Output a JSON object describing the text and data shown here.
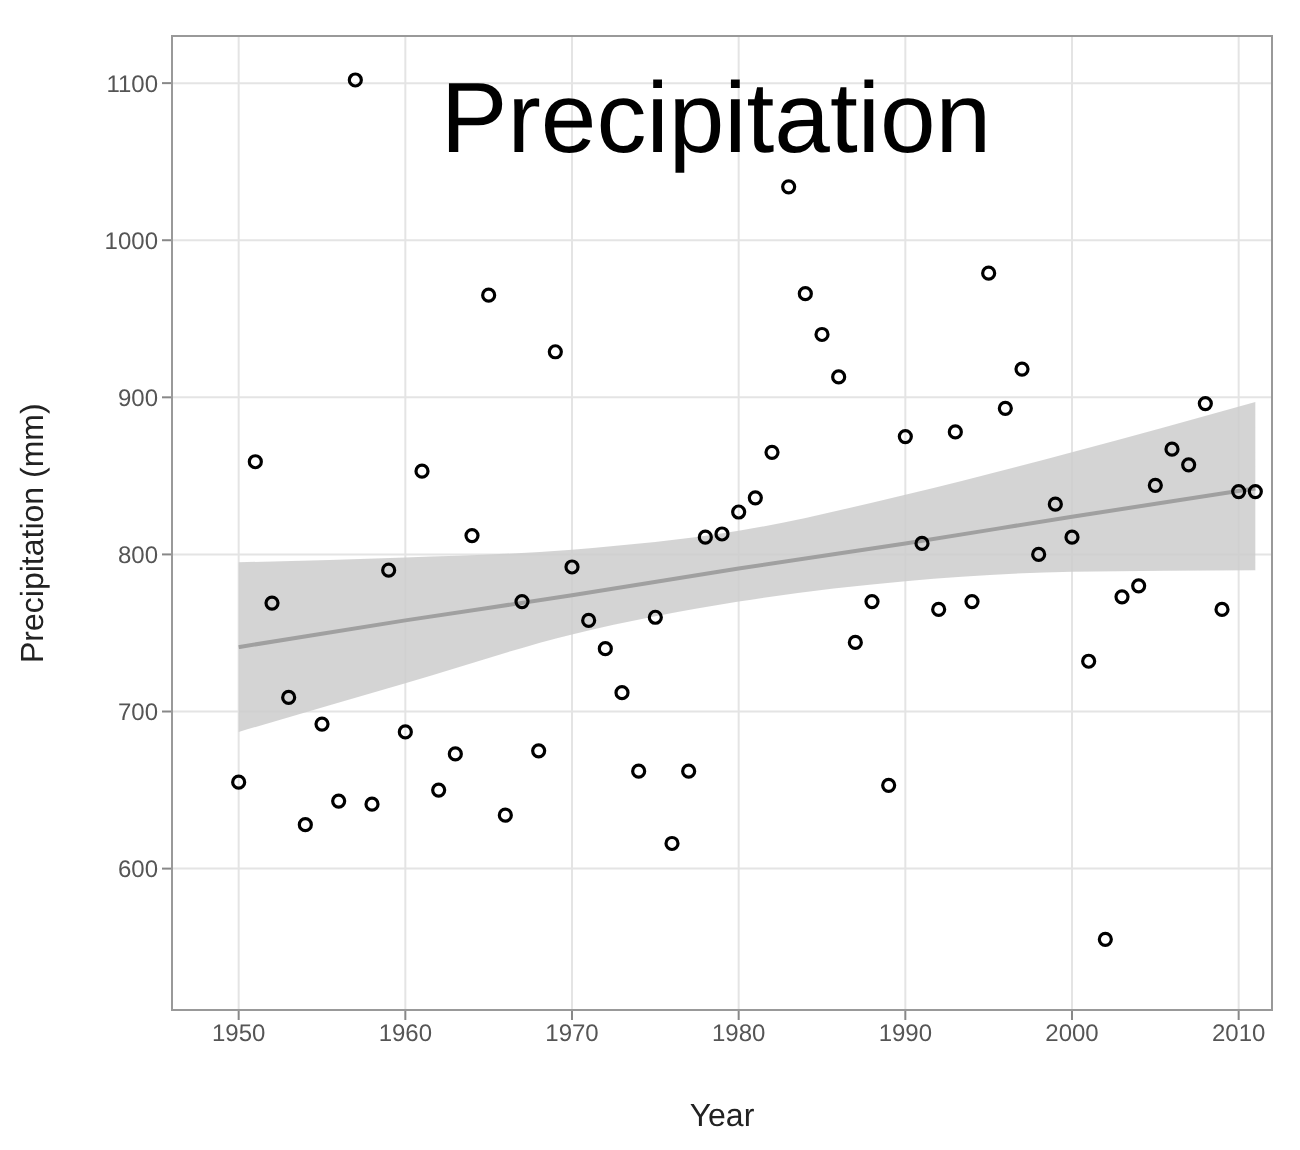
{
  "chart_data": {
    "type": "scatter",
    "title": "Precipitation",
    "xlabel": "Year",
    "ylabel": "Precipitation (mm)",
    "xlim": [
      1946,
      2012
    ],
    "ylim": [
      510,
      1130
    ],
    "xticks": [
      1950,
      1960,
      1970,
      1980,
      1990,
      2000,
      2010
    ],
    "yticks": [
      600,
      700,
      800,
      900,
      1000,
      1100
    ],
    "grid": true,
    "series": [
      {
        "marker": "circle",
        "color": "#000000",
        "x": [
          1950,
          1951,
          1952,
          1953,
          1954,
          1955,
          1956,
          1957,
          1958,
          1959,
          1960,
          1961,
          1962,
          1963,
          1964,
          1965,
          1966,
          1967,
          1968,
          1969,
          1970,
          1971,
          1972,
          1973,
          1974,
          1975,
          1976,
          1977,
          1978,
          1979,
          1980,
          1981,
          1982,
          1983,
          1984,
          1985,
          1986,
          1987,
          1988,
          1989,
          1990,
          1991,
          1992,
          1993,
          1994,
          1995,
          1996,
          1997,
          1998,
          1999,
          2000,
          2001,
          2002,
          2003,
          2004,
          2005,
          2006,
          2007,
          2008,
          2009,
          2010,
          2011
        ],
        "values": [
          655,
          859,
          769,
          709,
          628,
          692,
          643,
          1102,
          641,
          790,
          687,
          853,
          650,
          673,
          812,
          965,
          634,
          770,
          675,
          929,
          792,
          758,
          740,
          712,
          662,
          760,
          616,
          662,
          811,
          813,
          827,
          836,
          865,
          1034,
          966,
          940,
          913,
          744,
          770,
          653,
          875,
          807,
          765,
          878,
          770,
          979,
          893,
          918,
          800,
          832,
          811,
          732,
          555,
          773,
          780,
          844,
          867,
          857,
          896,
          765,
          840,
          840
        ]
      },
      {
        "type": "line",
        "marker": "none",
        "color": "#a0a0a0",
        "x": [
          1950,
          1960,
          1970,
          1980,
          1990,
          2000,
          2011
        ],
        "values": [
          741,
          758,
          774,
          791,
          807,
          824,
          842
        ],
        "lower": [
          687,
          718,
          749,
          770,
          783,
          789,
          790
        ],
        "upper": [
          795,
          798,
          803,
          815,
          838,
          865,
          897
        ]
      }
    ]
  }
}
